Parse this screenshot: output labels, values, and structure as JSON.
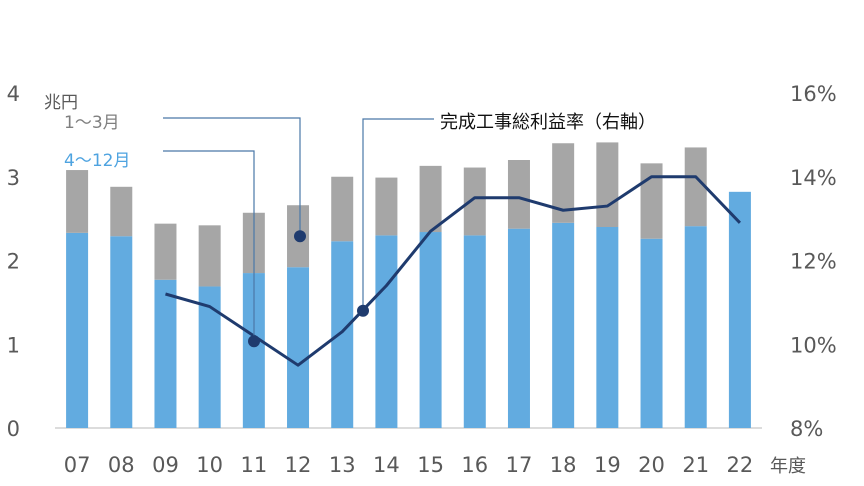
{
  "chart_data": {
    "type": "bar",
    "stacked": true,
    "categories": [
      "07",
      "08",
      "09",
      "10",
      "11",
      "12",
      "13",
      "14",
      "15",
      "16",
      "17",
      "18",
      "19",
      "20",
      "21",
      "22"
    ],
    "x_unit": "年度",
    "left_axis": {
      "unit": "兆円",
      "ylim": [
        0,
        4
      ],
      "ticks": [
        0,
        1,
        2,
        3,
        4
      ]
    },
    "right_axis": {
      "ylim": [
        8,
        16
      ],
      "ticks": [
        "8%",
        "10%",
        "12%",
        "14%",
        "16%"
      ]
    },
    "series": [
      {
        "name": "4～12月",
        "kind": "bar",
        "axis": "left",
        "color": "#62ABE0",
        "values": [
          2.33,
          2.29,
          1.77,
          1.69,
          1.85,
          1.92,
          2.23,
          2.3,
          2.34,
          2.3,
          2.38,
          2.45,
          2.4,
          2.26,
          2.41,
          2.82
        ]
      },
      {
        "name": "1～3月",
        "kind": "bar",
        "axis": "left",
        "color": "#A6A6A6",
        "values": [
          0.75,
          0.59,
          0.67,
          0.73,
          0.72,
          0.74,
          0.77,
          0.69,
          0.79,
          0.81,
          0.82,
          0.95,
          1.01,
          0.9,
          0.94,
          null
        ]
      },
      {
        "name": "完成工事総利益率（右軸）",
        "kind": "line",
        "axis": "right",
        "color": "#1F3B6E",
        "values": [
          null,
          null,
          11.2,
          10.9,
          10.2,
          9.5,
          10.3,
          11.4,
          12.7,
          13.5,
          13.5,
          13.2,
          13.3,
          14.0,
          14.0,
          12.9
        ]
      }
    ],
    "grid": false,
    "legend": "callout annotations"
  },
  "labels": {
    "series_q1": "1～3月",
    "series_apr_dec": "4～12月",
    "series_margin": "完成工事総利益率（右軸）"
  }
}
